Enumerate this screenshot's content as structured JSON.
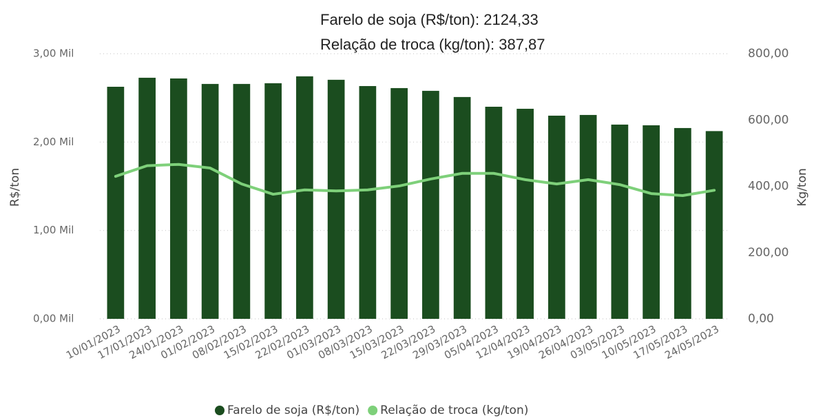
{
  "chart_data": {
    "type": "bar-line",
    "annotations": [
      "Farelo de soja (R$/ton): 2124,33",
      "Relação de troca (kg/ton): 387,87"
    ],
    "ylabel": "R$/ton",
    "y2label": "Kg/ton",
    "categories": [
      "10/01/2023",
      "17/01/2023",
      "24/01/2023",
      "01/02/2023",
      "08/02/2023",
      "15/02/2023",
      "22/02/2023",
      "01/03/2023",
      "08/03/2023",
      "15/03/2023",
      "22/03/2023",
      "29/03/2023",
      "05/04/2023",
      "12/04/2023",
      "19/04/2023",
      "26/04/2023",
      "03/05/2023",
      "10/05/2023",
      "17/05/2023",
      "24/05/2023"
    ],
    "series": [
      {
        "name": "Farelo de soja (R$/ton)",
        "color": "#1b4d1f",
        "type": "bar",
        "values": [
          2626,
          2728,
          2720,
          2658,
          2658,
          2666,
          2744,
          2705,
          2634,
          2611,
          2580,
          2510,
          2400,
          2377,
          2299,
          2307,
          2198,
          2190,
          2159,
          2124.33
        ]
      },
      {
        "name": "Relação de troca (kg/ton)",
        "color": "#7ed07a",
        "type": "line",
        "axis": "y2",
        "values": [
          430,
          462,
          466,
          455,
          407,
          376,
          389,
          386,
          389,
          401,
          422,
          439,
          439,
          420,
          407,
          420,
          405,
          378,
          372,
          387.87
        ]
      }
    ],
    "ylim": [
      0,
      3000
    ],
    "yticks": [
      {
        "value": 0,
        "label": "0,00 Mil"
      },
      {
        "value": 1000,
        "label": "1,00 Mil"
      },
      {
        "value": 2000,
        "label": "2,00 Mil"
      },
      {
        "value": 3000,
        "label": "3,00 Mil"
      }
    ],
    "y2lim": [
      0,
      800
    ],
    "y2ticks": [
      {
        "value": 0,
        "label": "0,00"
      },
      {
        "value": 200,
        "label": "200,00"
      },
      {
        "value": 400,
        "label": "400,00"
      },
      {
        "value": 600,
        "label": "600,00"
      },
      {
        "value": 800,
        "label": "800,00"
      }
    ],
    "grid": true
  }
}
